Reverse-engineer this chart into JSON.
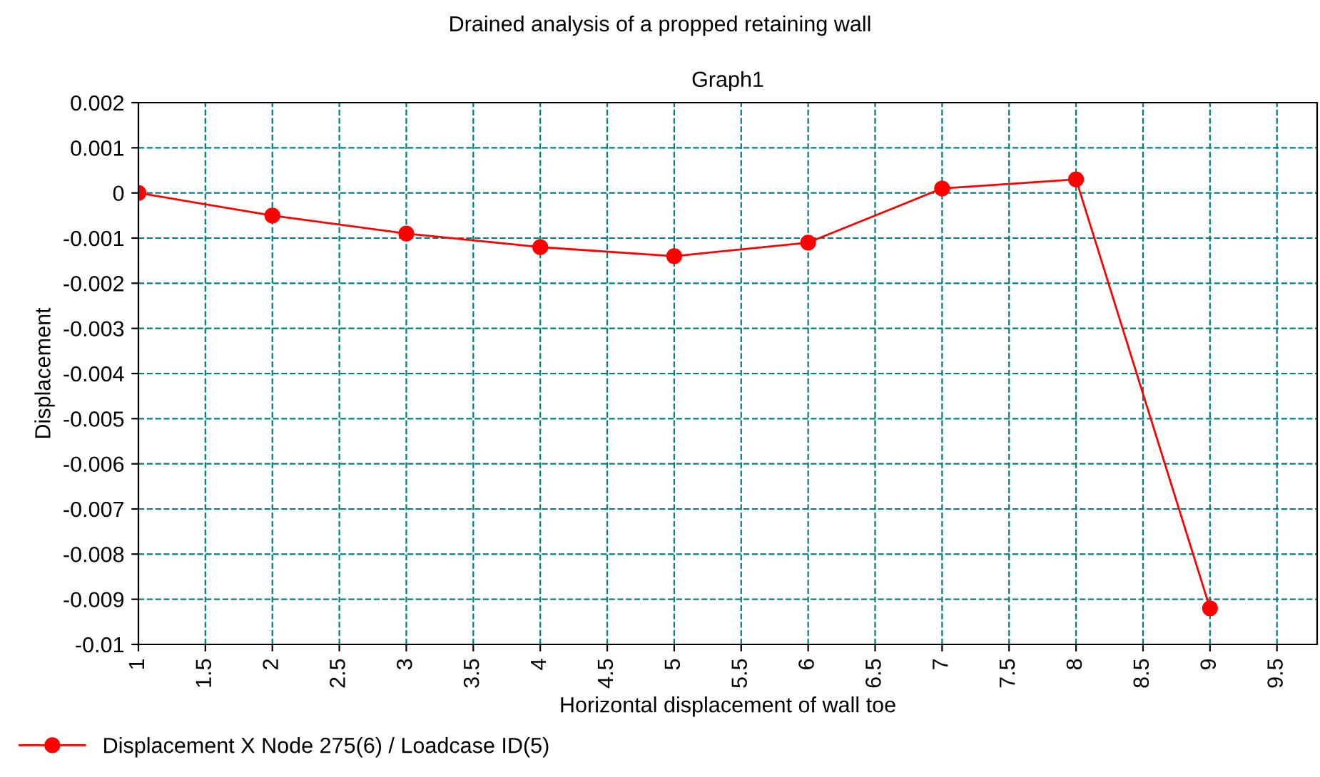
{
  "chart_data": {
    "type": "line",
    "title": "Drained analysis of a propped retaining wall",
    "subtitle": "Graph1",
    "xlabel": "Horizontal displacement of wall toe",
    "ylabel": "Displacement",
    "x": [
      1,
      2,
      3,
      4,
      5,
      6,
      7,
      8,
      9
    ],
    "series": [
      {
        "name": "Displacement X Node 275(6) / Loadcase ID(5)",
        "color": "#ff0000",
        "values": [
          0.0,
          -0.0005,
          -0.0009,
          -0.0012,
          -0.0014,
          -0.0011,
          0.0001,
          0.0003,
          -0.0092
        ]
      }
    ],
    "xlim": [
      1,
      9.8
    ],
    "xticks": [
      1,
      1.5,
      2,
      2.5,
      3,
      3.5,
      4,
      4.5,
      5,
      5.5,
      6,
      6.5,
      7,
      7.5,
      8,
      8.5,
      9,
      9.5
    ],
    "ylim": [
      -0.01,
      0.002
    ],
    "yticks": [
      -0.01,
      -0.009,
      -0.008,
      -0.007,
      -0.006,
      -0.005,
      -0.004,
      -0.003,
      -0.002,
      -0.001,
      0,
      0.001,
      0.002
    ],
    "grid": true,
    "legend": "bottom left",
    "marker": "circle",
    "line_style": "solid"
  }
}
